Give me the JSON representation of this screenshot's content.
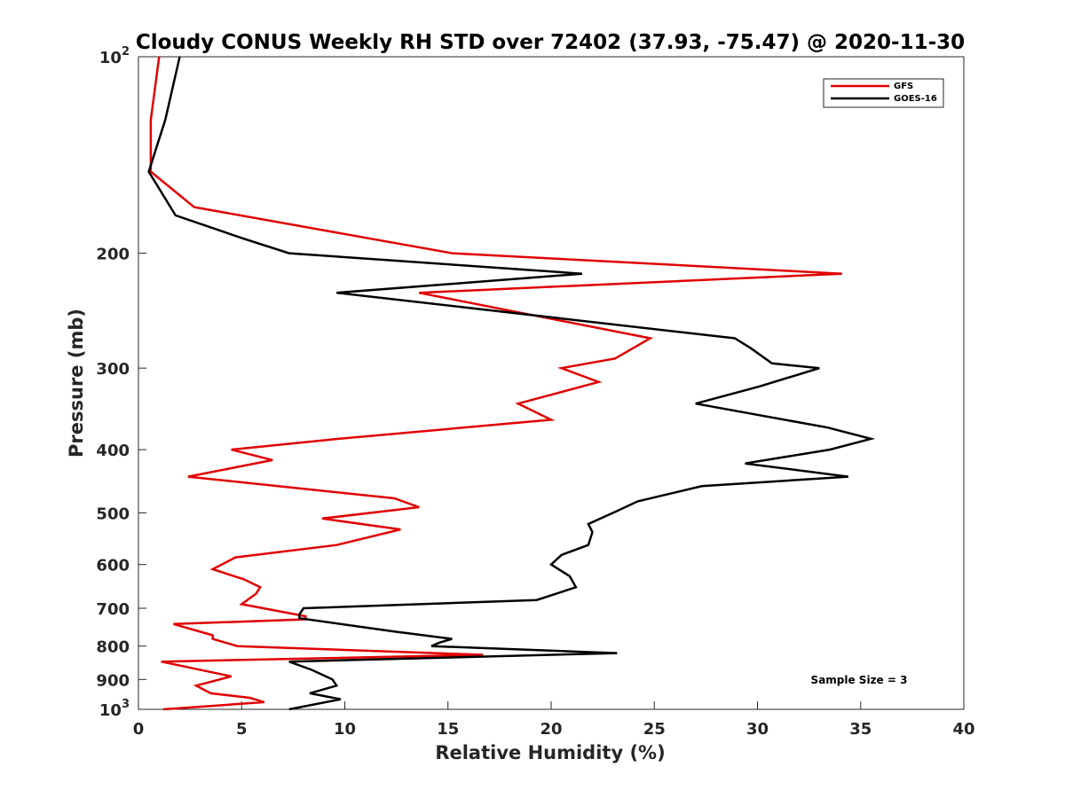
{
  "chart_data": {
    "type": "line",
    "title": "Cloudy CONUS Weekly RH STD over 72402 (37.93, -75.47) @ 2020-11-30",
    "xlabel": "Relative Humidity (%)",
    "ylabel": "Pressure (mb)",
    "xlim": [
      0,
      40
    ],
    "ylim": [
      100,
      1000
    ],
    "y_scale": "log",
    "y_reversed": true,
    "x_ticks": [
      "0",
      "5",
      "10",
      "15",
      "20",
      "25",
      "30",
      "35",
      "40"
    ],
    "y_ticks": [
      {
        "value": 100,
        "base": "10",
        "exp": "2"
      },
      {
        "value": 200,
        "label": "200"
      },
      {
        "value": 300,
        "label": "300"
      },
      {
        "value": 400,
        "label": "400"
      },
      {
        "value": 500,
        "label": "500"
      },
      {
        "value": 600,
        "label": "600"
      },
      {
        "value": 700,
        "label": "700"
      },
      {
        "value": 800,
        "label": "800"
      },
      {
        "value": 900,
        "label": "900"
      },
      {
        "value": 1000,
        "base": "10",
        "exp": "3"
      }
    ],
    "legend_position": "top-right",
    "annotation": "Sample Size = 3",
    "series": [
      {
        "name": "GFS",
        "color": "#e00000",
        "points": [
          [
            1.0,
            100
          ],
          [
            0.6,
            125
          ],
          [
            0.6,
            150
          ],
          [
            2.7,
            170
          ],
          [
            15.2,
            200
          ],
          [
            34.1,
            215
          ],
          [
            13.6,
            230
          ],
          [
            24.8,
            270
          ],
          [
            23.1,
            290
          ],
          [
            20.5,
            300
          ],
          [
            22.3,
            315
          ],
          [
            18.4,
            340
          ],
          [
            20.0,
            360
          ],
          [
            9.7,
            385
          ],
          [
            4.5,
            400
          ],
          [
            6.5,
            415
          ],
          [
            2.4,
            440
          ],
          [
            12.4,
            475
          ],
          [
            13.6,
            490
          ],
          [
            8.9,
            510
          ],
          [
            12.7,
            530
          ],
          [
            9.6,
            560
          ],
          [
            4.7,
            585
          ],
          [
            3.6,
            610
          ],
          [
            5.1,
            632
          ],
          [
            5.9,
            650
          ],
          [
            5.7,
            665
          ],
          [
            5.0,
            690
          ],
          [
            8.1,
            720
          ],
          [
            8.1,
            728
          ],
          [
            1.7,
            740
          ],
          [
            3.6,
            770
          ],
          [
            3.6,
            780
          ],
          [
            4.8,
            800
          ],
          [
            16.7,
            825
          ],
          [
            1.1,
            845
          ],
          [
            4.5,
            890
          ],
          [
            2.8,
            920
          ],
          [
            3.5,
            945
          ],
          [
            5.4,
            960
          ],
          [
            6.1,
            975
          ],
          [
            1.2,
            1000
          ]
        ]
      },
      {
        "name": "GOES-16",
        "color": "#000000",
        "points": [
          [
            2.0,
            100
          ],
          [
            1.3,
            125
          ],
          [
            0.5,
            150
          ],
          [
            1.8,
            175
          ],
          [
            5.1,
            190
          ],
          [
            7.3,
            200
          ],
          [
            21.5,
            215
          ],
          [
            9.6,
            230
          ],
          [
            28.9,
            270
          ],
          [
            29.7,
            280
          ],
          [
            30.7,
            295
          ],
          [
            33.0,
            300
          ],
          [
            30.1,
            320
          ],
          [
            27.0,
            340
          ],
          [
            33.4,
            370
          ],
          [
            35.5,
            385
          ],
          [
            33.5,
            400
          ],
          [
            29.4,
            420
          ],
          [
            34.4,
            440
          ],
          [
            27.3,
            455
          ],
          [
            24.2,
            480
          ],
          [
            23.0,
            500
          ],
          [
            21.8,
            520
          ],
          [
            22.0,
            535
          ],
          [
            21.8,
            560
          ],
          [
            20.5,
            580
          ],
          [
            20.0,
            600
          ],
          [
            20.9,
            625
          ],
          [
            21.2,
            650
          ],
          [
            19.3,
            680
          ],
          [
            8.0,
            700
          ],
          [
            7.8,
            715
          ],
          [
            7.8,
            725
          ],
          [
            12.4,
            760
          ],
          [
            15.2,
            780
          ],
          [
            14.6,
            790
          ],
          [
            14.2,
            800
          ],
          [
            23.2,
            820
          ],
          [
            7.3,
            845
          ],
          [
            8.4,
            870
          ],
          [
            9.4,
            900
          ],
          [
            9.6,
            920
          ],
          [
            8.3,
            945
          ],
          [
            9.8,
            965
          ],
          [
            7.3,
            1000
          ]
        ]
      }
    ]
  }
}
